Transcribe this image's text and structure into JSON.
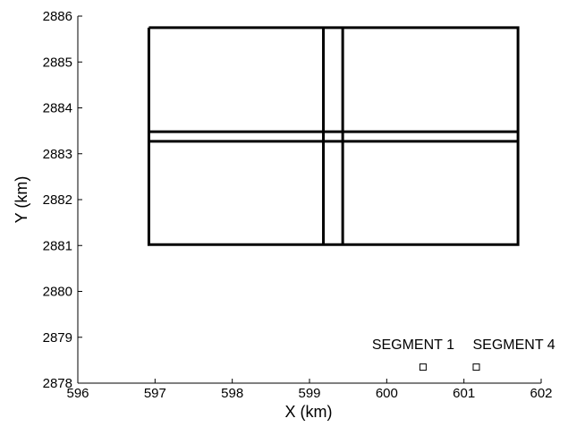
{
  "chart_data": {
    "type": "line",
    "x_label": "X (km)",
    "y_label": "Y (km)",
    "xlim": [
      596,
      602
    ],
    "xticks": [
      596,
      597,
      598,
      599,
      600,
      601,
      602
    ],
    "ylim": [
      2878,
      2886
    ],
    "yticks": [
      2878,
      2879,
      2880,
      2881,
      2882,
      2883,
      2884,
      2885,
      2886
    ],
    "color": "#000000",
    "series": [
      {
        "x": [
          596.92,
          601.7,
          601.7,
          596.92,
          596.92
        ],
        "values": [
          2885.75,
          2885.75,
          2881.02,
          2881.02,
          2885.75
        ]
      },
      {
        "x": [
          599.18,
          599.18
        ],
        "values": [
          2885.75,
          2881.02
        ]
      },
      {
        "x": [
          599.43,
          599.43
        ],
        "values": [
          2885.75,
          2881.02
        ]
      },
      {
        "x": [
          596.92,
          601.7
        ],
        "values": [
          2883.48,
          2883.48
        ]
      },
      {
        "x": [
          596.92,
          601.7
        ],
        "values": [
          2883.27,
          2883.27
        ]
      }
    ],
    "points": {
      "x": [
        600.47,
        601.16
      ],
      "values": [
        2878.35,
        2878.35
      ],
      "labels": [
        "SEGMENT 1",
        "SEGMENT 4"
      ]
    }
  }
}
